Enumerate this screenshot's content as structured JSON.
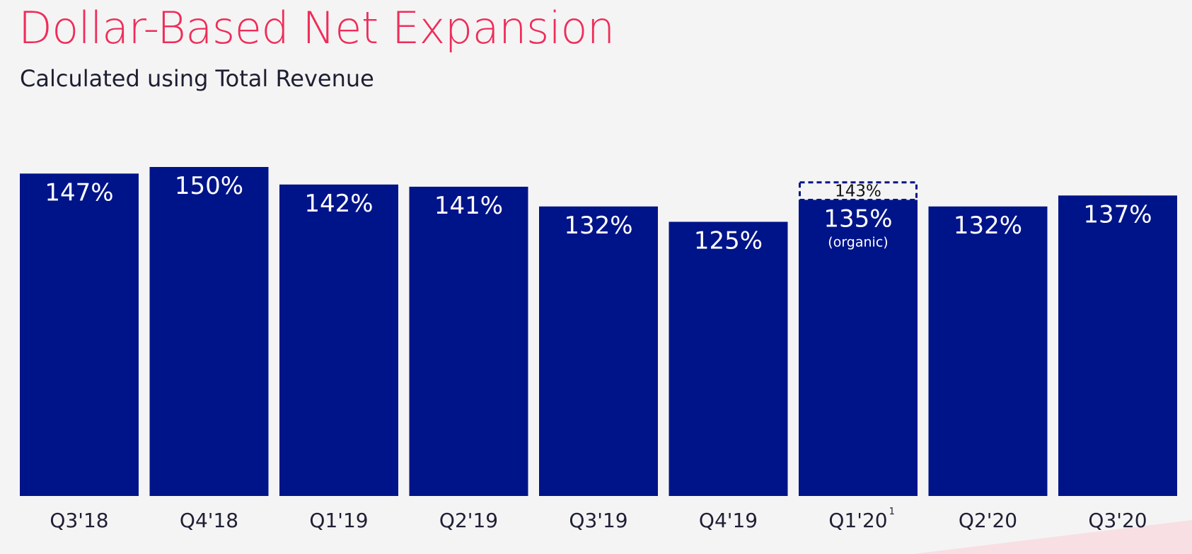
{
  "header": {
    "title": "Dollar-Based Net Expansion",
    "subtitle": "Calculated using Total Revenue"
  },
  "colors": {
    "title": "#ee2d5a",
    "bar": "#001489",
    "background": "#f5f4f4",
    "dashed_outline": "#001489",
    "corner_accent": "#f8dfe4"
  },
  "chart_data": {
    "type": "bar",
    "title": "Dollar-Based Net Expansion",
    "subtitle": "Calculated using Total Revenue",
    "xlabel": "",
    "ylabel": "",
    "categories": [
      "Q3'18",
      "Q4'18",
      "Q1'19",
      "Q2'19",
      "Q3'19",
      "Q4'19",
      "Q1'20",
      "Q2'20",
      "Q3'20"
    ],
    "category_footnotes": [
      "",
      "",
      "",
      "",
      "",
      "",
      "1",
      "",
      ""
    ],
    "values": [
      147,
      150,
      142,
      141,
      132,
      125,
      135,
      132,
      137
    ],
    "value_labels": [
      "147%",
      "150%",
      "142%",
      "141%",
      "132%",
      "125%",
      "135%",
      "132%",
      "137%"
    ],
    "value_notes": [
      "",
      "",
      "",
      "",
      "",
      "",
      "(organic)",
      "",
      ""
    ],
    "highlight": {
      "category": "Q1'20",
      "value": 143,
      "label": "143%",
      "style": "dashed outline above bar"
    },
    "grid": false,
    "legend": "none"
  }
}
